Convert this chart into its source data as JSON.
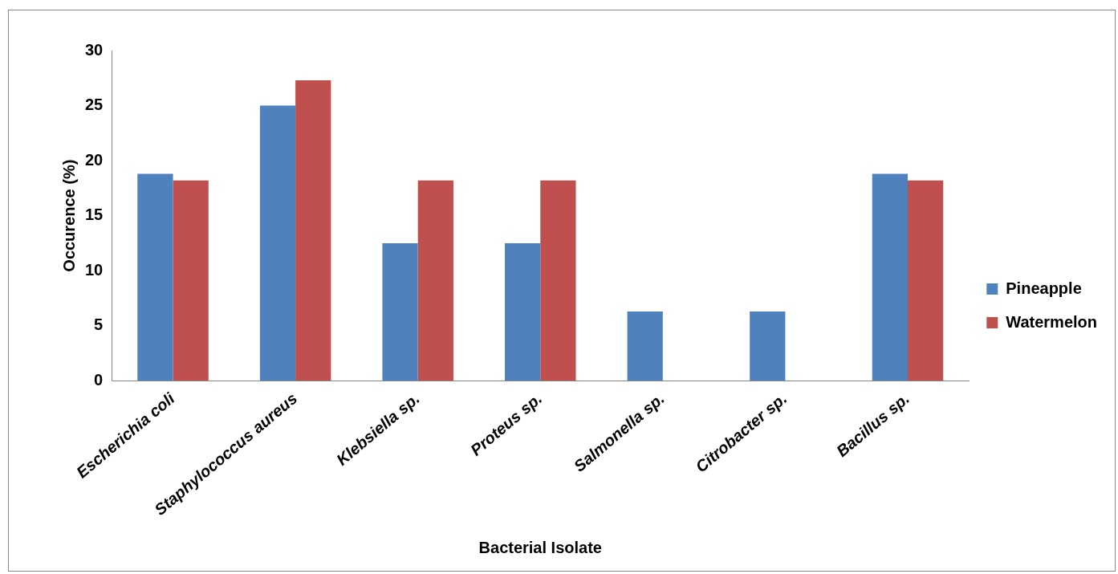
{
  "chart_data": {
    "type": "bar",
    "xlabel": "Bacterial Isolate",
    "ylabel": "Occurence (%)",
    "categories": [
      "Escherichia coli",
      "Staphylococcus aureus",
      "Klebsiella sp.",
      "Proteus sp.",
      "Salmonella sp.",
      "Citrobacter sp.",
      "Bacillus sp."
    ],
    "series": [
      {
        "name": "Pineapple",
        "color": "#4f81bd",
        "values": [
          18.8,
          25.0,
          12.5,
          12.5,
          6.3,
          6.3,
          18.8
        ]
      },
      {
        "name": "Watermelon",
        "color": "#c0504d",
        "values": [
          18.2,
          27.3,
          18.2,
          18.2,
          0,
          0,
          18.2
        ]
      }
    ],
    "ylim": [
      0,
      30
    ],
    "yticks": [
      0,
      5,
      10,
      15,
      20,
      25,
      30
    ],
    "grid": false,
    "legend": "right"
  }
}
